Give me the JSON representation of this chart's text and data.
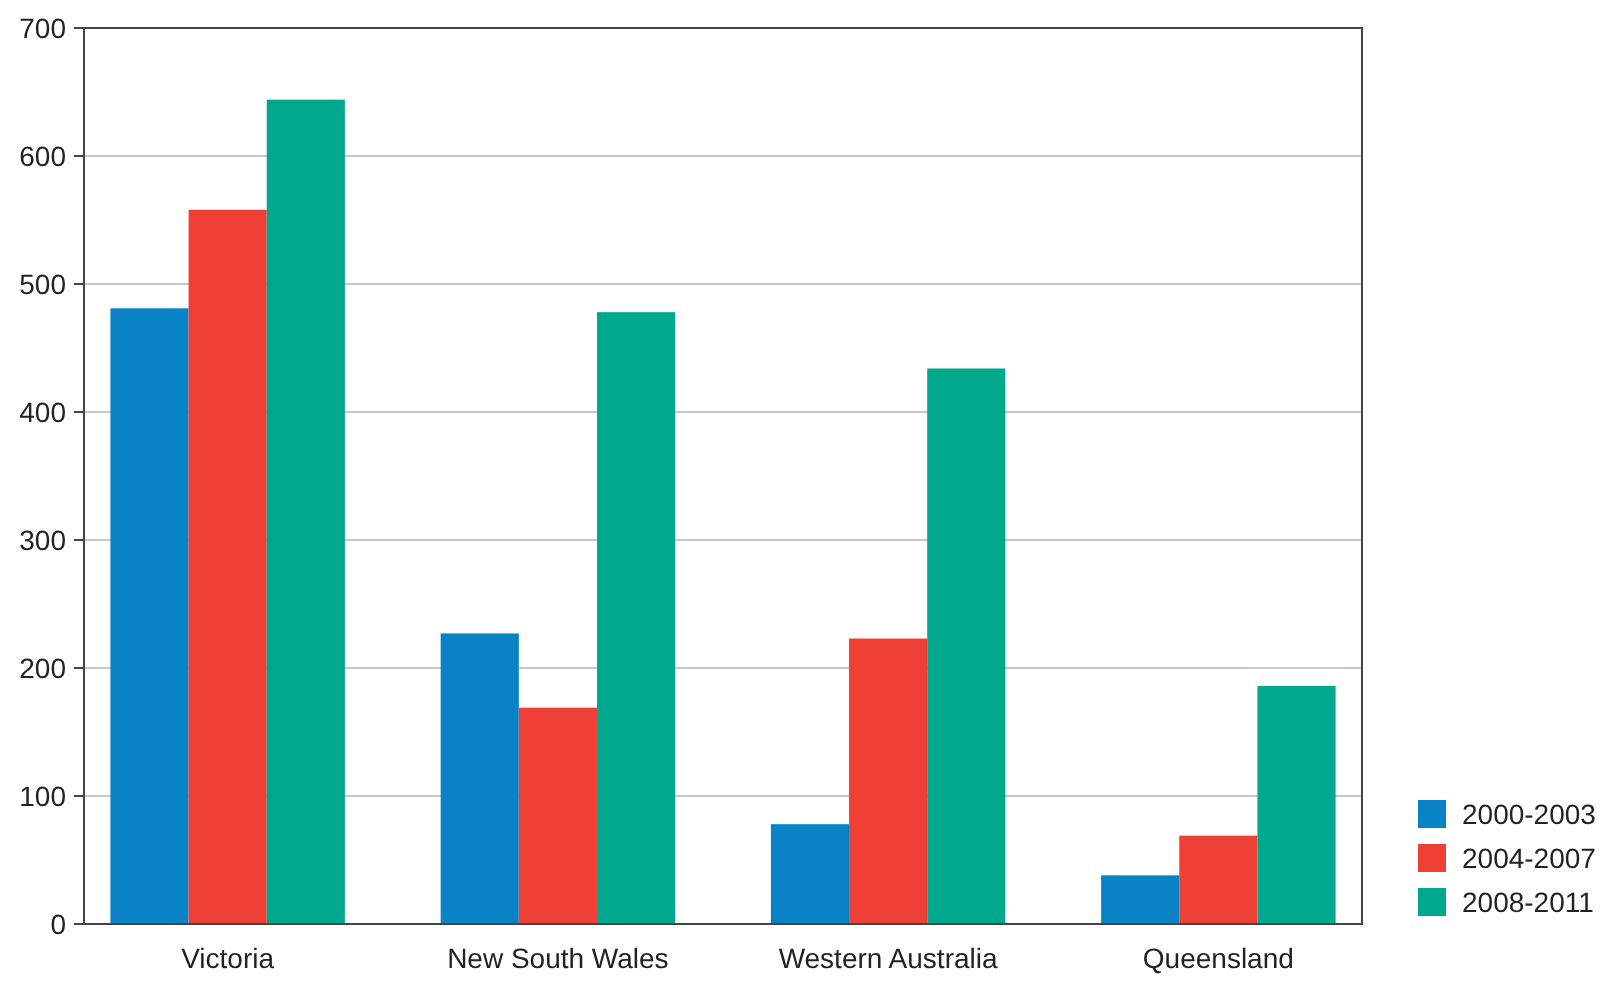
{
  "chart_data": {
    "type": "bar",
    "categories": [
      "Victoria",
      "New South Wales",
      "Western Australia",
      "Queensland"
    ],
    "series": [
      {
        "name": "2000-2003",
        "color": "#0a83c6",
        "values": [
          481,
          227,
          78,
          38
        ]
      },
      {
        "name": "2004-2007",
        "color": "#ee4035",
        "values": [
          558,
          169,
          223,
          69
        ]
      },
      {
        "name": "2008-2011",
        "color": "#00a88e",
        "values": [
          644,
          478,
          434,
          186
        ]
      }
    ],
    "ylim": [
      0,
      700
    ],
    "yticks": [
      0,
      100,
      200,
      300,
      400,
      500,
      600,
      700
    ],
    "grid": "y",
    "legend": "bottom right"
  }
}
